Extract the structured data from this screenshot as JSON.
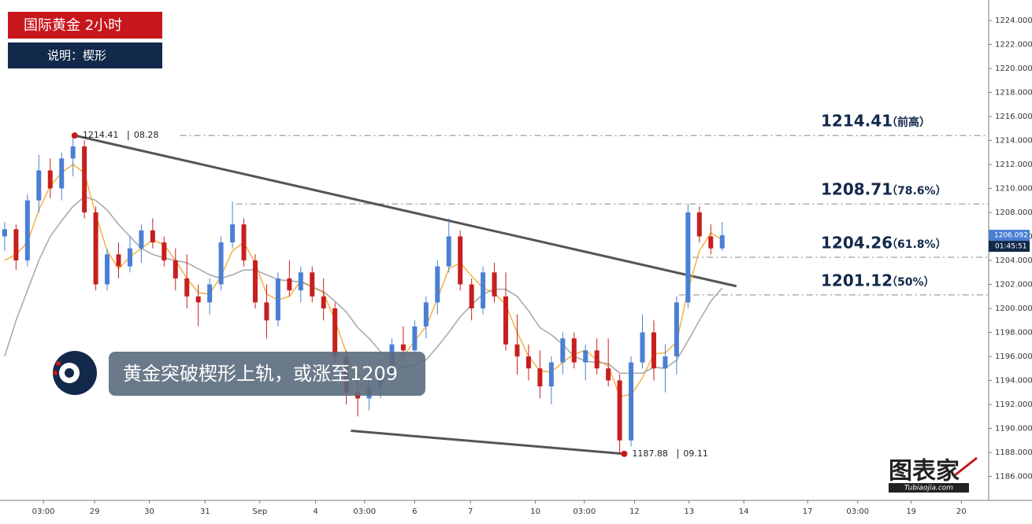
{
  "chart_data": {
    "type": "candlestick",
    "title": "国际黄金 2小时",
    "subtitle": "说明：楔形",
    "headline": "黄金突破楔形上轨，或涨至1209",
    "logo": "图表家",
    "logo_site": "Tubiaojia.com",
    "ylim": [
      1184,
      1225.7
    ],
    "yticks": [
      {
        "value": 1186,
        "label": "1186.000"
      },
      {
        "value": 1188,
        "label": "1188.000"
      },
      {
        "value": 1190,
        "label": "1190.000"
      },
      {
        "value": 1192,
        "label": "1192.000"
      },
      {
        "value": 1194,
        "label": "1194.000"
      },
      {
        "value": 1196,
        "label": "1196.000"
      },
      {
        "value": 1198,
        "label": "1198.000"
      },
      {
        "value": 1200,
        "label": "1200.000"
      },
      {
        "value": 1202,
        "label": "1202.000"
      },
      {
        "value": 1204,
        "label": "1204.000"
      },
      {
        "value": 1206,
        "label": "1206.000"
      },
      {
        "value": 1208,
        "label": "1208.000"
      },
      {
        "value": 1210,
        "label": "1210.000"
      },
      {
        "value": 1212,
        "label": "1212.000"
      },
      {
        "value": 1214,
        "label": "1214.000"
      },
      {
        "value": 1216,
        "label": "1216.000"
      },
      {
        "value": 1218,
        "label": "1218.000"
      },
      {
        "value": 1220,
        "label": "1220.000"
      },
      {
        "value": 1222,
        "label": "1222.000"
      },
      {
        "value": 1224,
        "label": "1224.000"
      }
    ],
    "xlim": [
      -0.41,
      86.4
    ],
    "xticks": [
      {
        "value": 3.4,
        "label": "03:00"
      },
      {
        "value": 7.9,
        "label": "29"
      },
      {
        "value": 12.7,
        "label": "30"
      },
      {
        "value": 17.6,
        "label": "31"
      },
      {
        "value": 22.4,
        "label": "Sep"
      },
      {
        "value": 27.3,
        "label": "4"
      },
      {
        "value": 31.6,
        "label": "03:00"
      },
      {
        "value": 36,
        "label": "6"
      },
      {
        "value": 40.9,
        "label": "7"
      },
      {
        "value": 46.6,
        "label": "10"
      },
      {
        "value": 50.9,
        "label": "03:00"
      },
      {
        "value": 55.3,
        "label": "12"
      },
      {
        "value": 60.1,
        "label": "13"
      },
      {
        "value": 64.9,
        "label": "14"
      },
      {
        "value": 70.5,
        "label": "17"
      },
      {
        "value": 74.9,
        "label": "03:00"
      },
      {
        "value": 79.6,
        "label": "19"
      },
      {
        "value": 84,
        "label": "20"
      }
    ],
    "up_color": "#4a7fd4",
    "down_color": "#c81e1e",
    "x": [
      0,
      1,
      2,
      3,
      4,
      5,
      6,
      7,
      8,
      9,
      10,
      11,
      12,
      13,
      14,
      15,
      16,
      17,
      18,
      19,
      20,
      21,
      22,
      23,
      24,
      25,
      26,
      27,
      28,
      29,
      30,
      31,
      32,
      33,
      34,
      35,
      36,
      37,
      38,
      39,
      40,
      41,
      42,
      43,
      44,
      45,
      46,
      47,
      48,
      49,
      50,
      51,
      52,
      53,
      54,
      55,
      56,
      57,
      58,
      59,
      60,
      61,
      62,
      63
    ],
    "ohlc": [
      [
        1206,
        1207.2,
        1204.8,
        1206.6
      ],
      [
        1206.6,
        1207,
        1203.2,
        1204
      ],
      [
        1204,
        1209.5,
        1203.5,
        1209
      ],
      [
        1209,
        1212.8,
        1208,
        1211.5
      ],
      [
        1211.5,
        1212.5,
        1209.2,
        1210
      ],
      [
        1210,
        1213,
        1209,
        1212.5
      ],
      [
        1212.5,
        1214.41,
        1211,
        1213.5
      ],
      [
        1213.5,
        1214,
        1207.5,
        1208
      ],
      [
        1208,
        1208.5,
        1201.5,
        1202
      ],
      [
        1202,
        1205,
        1201.5,
        1204.5
      ],
      [
        1204.5,
        1205.5,
        1202.5,
        1203.5
      ],
      [
        1203.5,
        1206,
        1203,
        1205
      ],
      [
        1205,
        1207,
        1203.8,
        1206.5
      ],
      [
        1206.5,
        1207.5,
        1205,
        1205.5
      ],
      [
        1205.5,
        1206,
        1203.5,
        1204
      ],
      [
        1204,
        1205,
        1201.5,
        1202.5
      ],
      [
        1202.5,
        1204.5,
        1200,
        1201
      ],
      [
        1201,
        1202,
        1198.5,
        1200.5
      ],
      [
        1200.5,
        1202.5,
        1199.5,
        1202
      ],
      [
        1202,
        1206,
        1201.5,
        1205.5
      ],
      [
        1205.5,
        1208.9,
        1205,
        1207
      ],
      [
        1207,
        1207.5,
        1203.5,
        1204
      ],
      [
        1204,
        1204.5,
        1200,
        1200.5
      ],
      [
        1200.5,
        1202,
        1197.5,
        1199
      ],
      [
        1199,
        1203,
        1198.5,
        1202.5
      ],
      [
        1202.5,
        1204,
        1201,
        1201.5
      ],
      [
        1201.5,
        1203.5,
        1200.5,
        1203
      ],
      [
        1203,
        1203.5,
        1200.5,
        1201
      ],
      [
        1201,
        1202.5,
        1199,
        1200
      ],
      [
        1200,
        1200.5,
        1195.5,
        1196
      ],
      [
        1196,
        1196.5,
        1192,
        1193
      ],
      [
        1193,
        1194.5,
        1191,
        1192.5
      ],
      [
        1192.5,
        1194,
        1191.5,
        1193.5
      ],
      [
        1193.5,
        1195.5,
        1192.5,
        1194.5
      ],
      [
        1194.5,
        1197.5,
        1193.5,
        1197
      ],
      [
        1197,
        1198.5,
        1195.5,
        1196.5
      ],
      [
        1196.5,
        1199,
        1196,
        1198.5
      ],
      [
        1198.5,
        1201,
        1197.5,
        1200.5
      ],
      [
        1200.5,
        1204,
        1199.5,
        1203.5
      ],
      [
        1203.5,
        1207.5,
        1203,
        1206
      ],
      [
        1206,
        1206.5,
        1201.5,
        1202
      ],
      [
        1202,
        1202.5,
        1199,
        1200
      ],
      [
        1200,
        1203.5,
        1199.5,
        1203
      ],
      [
        1203,
        1203.8,
        1200.5,
        1201
      ],
      [
        1201,
        1203,
        1196.5,
        1197
      ],
      [
        1197,
        1199.5,
        1194.5,
        1196
      ],
      [
        1196,
        1197,
        1194,
        1195
      ],
      [
        1195,
        1196.5,
        1192.5,
        1193.5
      ],
      [
        1193.5,
        1196,
        1192,
        1195.5
      ],
      [
        1195.5,
        1198,
        1194.5,
        1197.5
      ],
      [
        1197.5,
        1198,
        1195,
        1195.5
      ],
      [
        1195.5,
        1197,
        1194,
        1196.5
      ],
      [
        1196.5,
        1197.5,
        1194.5,
        1195
      ],
      [
        1195,
        1197.5,
        1193.5,
        1194
      ],
      [
        1194,
        1194.5,
        1187.88,
        1189
      ],
      [
        1189,
        1196,
        1188.5,
        1195.5
      ],
      [
        1195.5,
        1199.5,
        1195,
        1198
      ],
      [
        1198,
        1199,
        1194,
        1195
      ],
      [
        1195,
        1197,
        1193,
        1196
      ],
      [
        1196,
        1201,
        1194.5,
        1200.5
      ],
      [
        1200.5,
        1208.71,
        1200,
        1208
      ],
      [
        1208,
        1208.5,
        1205.5,
        1206
      ],
      [
        1206,
        1207,
        1204.5,
        1205
      ],
      [
        1205,
        1207.2,
        1204.8,
        1206.092
      ]
    ],
    "ma": [
      {
        "color": "#f5b041",
        "values": [
          1204,
          1204.5,
          1205.5,
          1208.2,
          1210.2,
          1211.3,
          1212,
          1211.3,
          1207.8,
          1204.8,
          1203.3,
          1204.3,
          1205,
          1205.7,
          1205.3,
          1204,
          1202.5,
          1201.3,
          1201.2,
          1202.7,
          1204.8,
          1205.5,
          1203.8,
          1201.2,
          1200.7,
          1201,
          1202.3,
          1201.8,
          1201.3,
          1199,
          1196.3,
          1193.8,
          1193,
          1193.5,
          1195,
          1196,
          1197.3,
          1198.5,
          1200.8,
          1203.3,
          1203.8,
          1202.7,
          1201.7,
          1201.3,
          1200.3,
          1198,
          1196,
          1194.8,
          1194.7,
          1195.5,
          1196.2,
          1196.5,
          1195.7,
          1195.2,
          1192.7,
          1192.8,
          1194.2,
          1196.2,
          1196.3,
          1197.2,
          1201.5,
          1204.8,
          1206.3,
          1205.7
        ]
      },
      {
        "color": "#a6a6a6",
        "values": [
          1196,
          1199,
          1201.5,
          1204,
          1206,
          1207.3,
          1208.5,
          1209.3,
          1209,
          1208.2,
          1207,
          1206,
          1205,
          1204.5,
          1204.2,
          1204,
          1203.8,
          1203.3,
          1202.8,
          1202.5,
          1202.8,
          1203.2,
          1203.2,
          1202.8,
          1202.4,
          1202.3,
          1202.2,
          1201.8,
          1201.4,
          1200.6,
          1199.7,
          1198.4,
          1197.5,
          1196.4,
          1195.6,
          1195.1,
          1195.3,
          1195.7,
          1196.8,
          1198,
          1199.3,
          1200.3,
          1201.2,
          1201.6,
          1201.6,
          1201,
          1199.8,
          1198.4,
          1197.8,
          1197,
          1196,
          1195.6,
          1195.5,
          1195.4,
          1194.6,
          1194.6,
          1194.6,
          1195.1,
          1195,
          1195.7,
          1197.3,
          1199,
          1200.6,
          1201.7
        ]
      }
    ],
    "levels": [
      {
        "value": 1214.41,
        "from": 15.4,
        "tag": "（前高）"
      },
      {
        "value": 1208.71,
        "from": 20.3,
        "tag": "（78.6%）"
      },
      {
        "value": 1204.26,
        "from": 60.4,
        "tag": "（61.8%）"
      },
      {
        "value": 1201.12,
        "from": 59.2,
        "tag": "（50%）"
      }
    ],
    "trendlines": [
      [
        [
          6.15,
          1214.41
        ],
        [
          64.25,
          1201.85
        ]
      ],
      [
        [
          30.4,
          1189.8
        ],
        [
          54.4,
          1187.88
        ]
      ]
    ],
    "extremes": [
      {
        "x": 6.15,
        "value": 1214.41,
        "date": "08.28"
      },
      {
        "x": 54.4,
        "value": 1187.88,
        "date": "09.11"
      }
    ],
    "last_price": {
      "value": 1206.092,
      "label": "1206.092"
    },
    "countdown": "01:45:51"
  }
}
